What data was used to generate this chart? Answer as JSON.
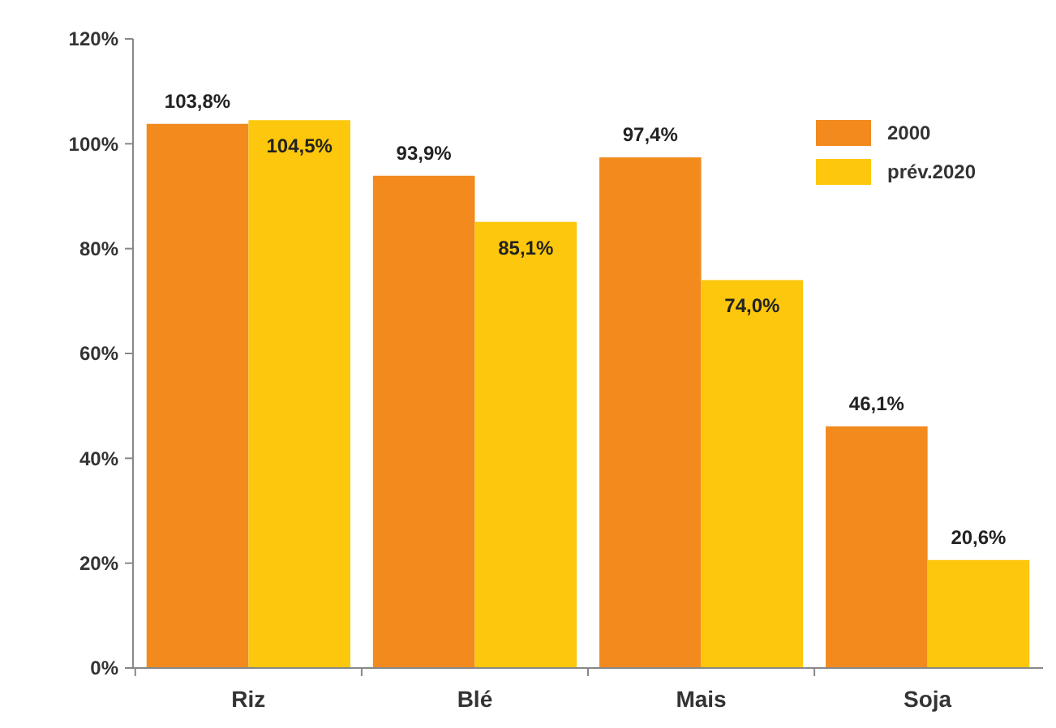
{
  "chart_data": {
    "type": "bar",
    "categories": [
      "Riz",
      "Blé",
      "Mais",
      "Soja"
    ],
    "series": [
      {
        "name": "2000",
        "color": "#f28a1e",
        "values": [
          103.8,
          93.9,
          97.4,
          46.1
        ],
        "value_labels": [
          "103,8%",
          "93,9%",
          "97,4%",
          "46,1%"
        ]
      },
      {
        "name": "prév.2020",
        "color": "#fcc70c",
        "values": [
          104.5,
          85.1,
          74.0,
          20.6
        ],
        "value_labels": [
          "104,5%",
          "85,1%",
          "74,0%",
          "20,6%"
        ]
      }
    ],
    "ylim": [
      0,
      120
    ],
    "yticks": [
      {
        "value": 0,
        "label": "0%"
      },
      {
        "value": 20,
        "label": "20%"
      },
      {
        "value": 40,
        "label": "40%"
      },
      {
        "value": 60,
        "label": "60%"
      },
      {
        "value": 80,
        "label": "80%"
      },
      {
        "value": 100,
        "label": "100%"
      },
      {
        "value": 120,
        "label": "120%"
      }
    ],
    "grid": false,
    "legend": "top right"
  }
}
